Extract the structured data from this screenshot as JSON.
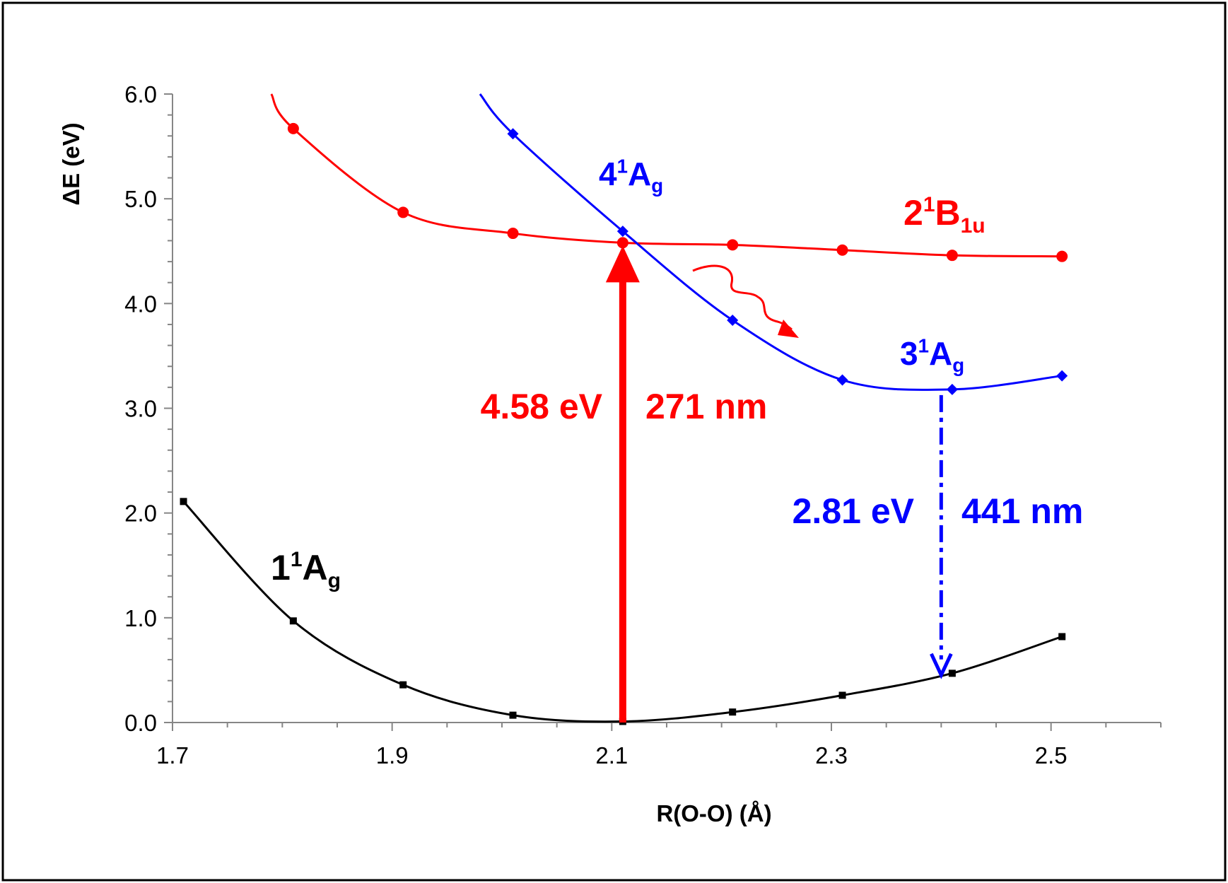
{
  "chart_data": {
    "type": "line",
    "title": "",
    "xlabel": "R(O-O) (Å)",
    "ylabel": "ΔE (eV)",
    "xlim": [
      1.7,
      2.6
    ],
    "ylim": [
      0.0,
      6.0
    ],
    "x_ticks": [
      "1.7",
      "1.9",
      "2.1",
      "2.3",
      "2.5"
    ],
    "x_tick_values": [
      1.7,
      1.9,
      2.1,
      2.3,
      2.5
    ],
    "y_ticks": [
      "0.0",
      "1.0",
      "2.0",
      "3.0",
      "4.0",
      "5.0",
      "6.0"
    ],
    "y_tick_values": [
      0,
      1,
      2,
      3,
      4,
      5,
      6
    ],
    "grid": false,
    "series": [
      {
        "name": "1¹Ag",
        "label_main": "1",
        "label_sup": "1",
        "label_letter": "A",
        "label_sub": "g",
        "color": "#000000",
        "marker": "square",
        "x": [
          1.71,
          1.81,
          1.91,
          2.01,
          2.11,
          2.21,
          2.31,
          2.41,
          2.51
        ],
        "y": [
          2.11,
          0.97,
          0.36,
          0.07,
          0.01,
          0.1,
          0.26,
          0.47,
          0.82
        ]
      },
      {
        "name": "2¹B1u",
        "label_main": "2",
        "label_sup": "1",
        "label_letter": "B",
        "label_sub": "1u",
        "color": "#ff0000",
        "marker": "circle",
        "x": [
          1.81,
          1.91,
          2.01,
          2.11,
          2.21,
          2.31,
          2.41,
          2.51
        ],
        "y": [
          5.67,
          4.87,
          4.67,
          4.58,
          4.56,
          4.51,
          4.46,
          4.45
        ]
      },
      {
        "name": "3¹Ag / 4¹Ag",
        "color": "#0000ff",
        "marker": "diamond",
        "x": [
          2.01,
          2.11,
          2.21,
          2.31,
          2.41,
          2.51
        ],
        "y": [
          5.62,
          4.69,
          3.84,
          3.27,
          3.18,
          3.31
        ]
      }
    ],
    "state_labels": [
      {
        "main": "4",
        "sup": "1",
        "letter": "A",
        "sub": "g",
        "color": "#0000ff"
      },
      {
        "main": "3",
        "sup": "1",
        "letter": "A",
        "sub": "g",
        "color": "#0000ff"
      }
    ],
    "annotations": {
      "absorption": {
        "energy": "4.58 eV",
        "wavelength": "271 nm",
        "color": "#ff0000",
        "x": 2.11,
        "y_from": 0.0,
        "y_to": 4.58
      },
      "emission": {
        "energy": "2.81 eV",
        "wavelength": "441 nm",
        "color": "#0000ff",
        "x": 2.4,
        "y_from": 3.18,
        "y_to": 0.44
      }
    }
  }
}
